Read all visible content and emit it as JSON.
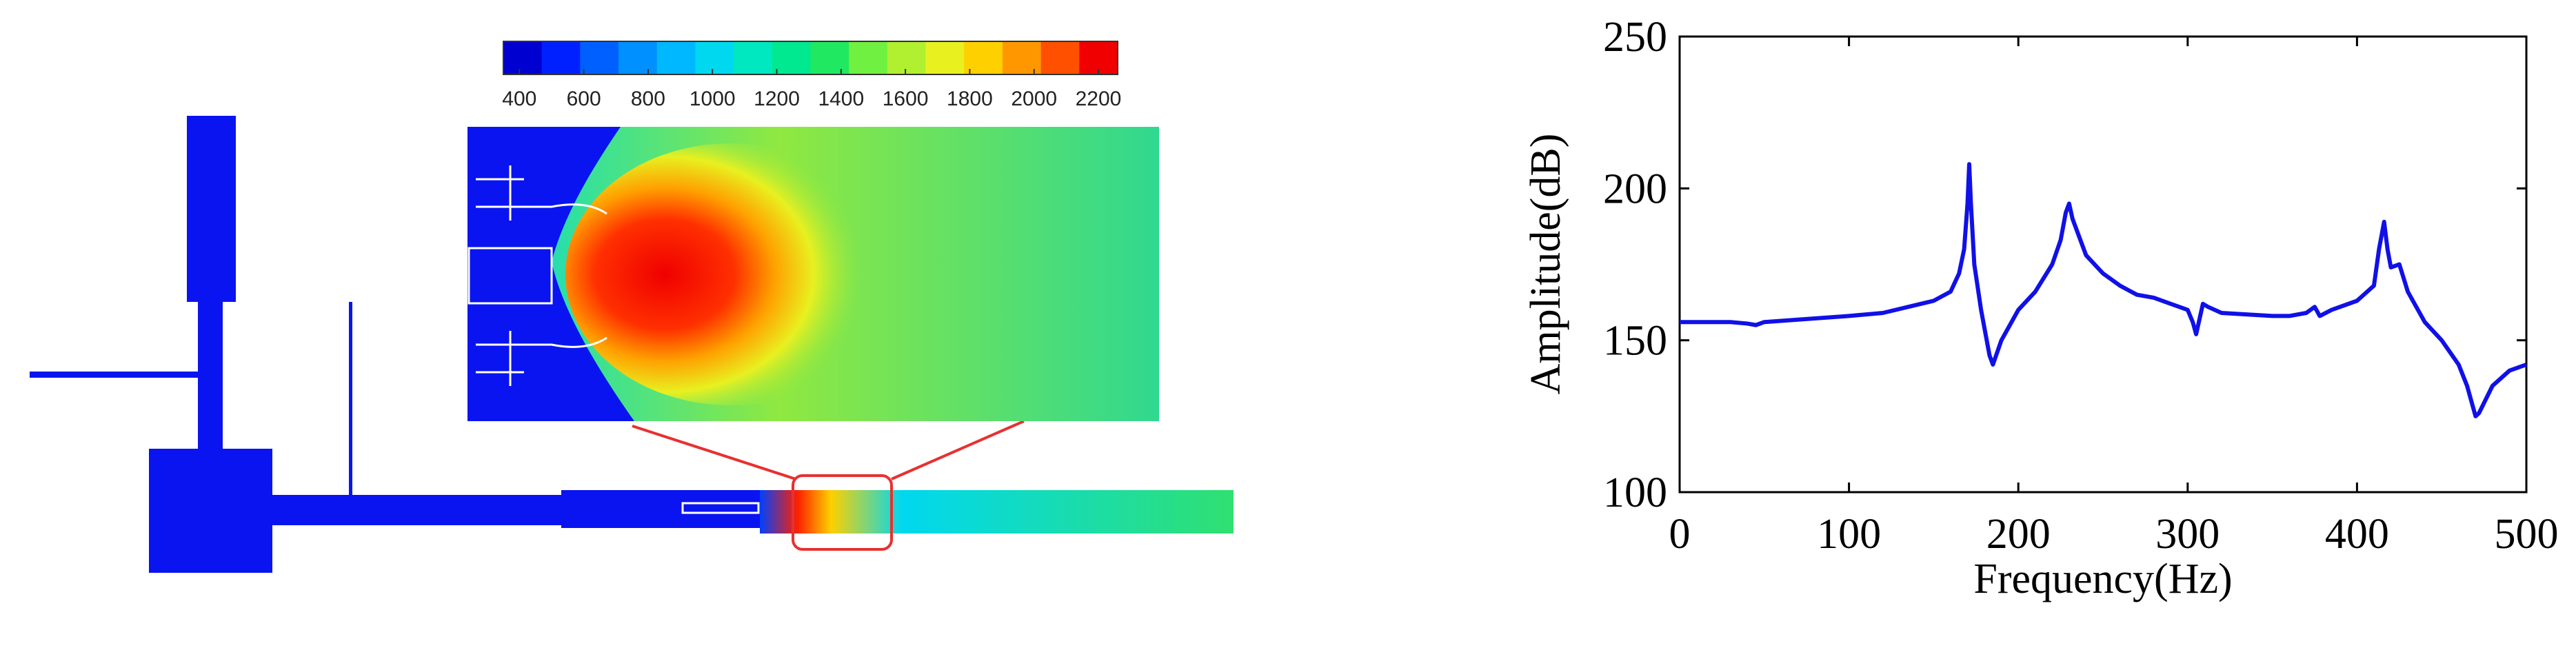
{
  "contour_figure": {
    "colorbar": {
      "range": [
        350,
        2260
      ],
      "ticks": [
        400,
        600,
        800,
        1000,
        1200,
        1400,
        1600,
        1800,
        2000,
        2200
      ],
      "colors": [
        "#0000d0",
        "#0020ff",
        "#0060ff",
        "#0090ff",
        "#00b8ff",
        "#00d8f0",
        "#00e8c0",
        "#00e890",
        "#20e860",
        "#70f040",
        "#b0f030",
        "#e8f020",
        "#ffd000",
        "#ff9800",
        "#ff5000",
        "#f00000"
      ]
    }
  },
  "chart_data": {
    "type": "line",
    "xlabel": "Frequency(Hz)",
    "ylabel": "Amplitude(dB)",
    "xlim": [
      0,
      500
    ],
    "ylim": [
      100,
      250
    ],
    "xticks": [
      0,
      100,
      200,
      300,
      400,
      500
    ],
    "yticks": [
      100,
      150,
      200,
      250
    ],
    "grid": false,
    "series": [
      {
        "name": "Amplitude",
        "color": "#1010e8",
        "x": [
          0,
          30,
          40,
          45,
          50,
          100,
          120,
          150,
          160,
          165,
          168,
          170,
          171,
          172,
          174,
          178,
          183,
          185,
          190,
          200,
          210,
          220,
          225,
          228,
          230,
          232,
          240,
          250,
          260,
          270,
          280,
          290,
          300,
          303,
          305,
          307,
          309,
          312,
          320,
          350,
          360,
          370,
          375,
          378,
          385,
          400,
          410,
          413,
          416,
          418,
          420,
          425,
          430,
          440,
          450,
          460,
          465,
          470,
          472,
          480,
          490,
          500
        ],
        "values": [
          156,
          156,
          155.5,
          155,
          156,
          158,
          159,
          163,
          166,
          172,
          180,
          195,
          208,
          195,
          175,
          160,
          145,
          142,
          150,
          160,
          166,
          175,
          183,
          192,
          195,
          190,
          178,
          172,
          168,
          165,
          164,
          162,
          160,
          156,
          152,
          157,
          162,
          161,
          159,
          158,
          158,
          159,
          161,
          158,
          160,
          163,
          168,
          180,
          189,
          180,
          174,
          175,
          166,
          156,
          150,
          142,
          135,
          125,
          126,
          135,
          140,
          142
        ]
      }
    ]
  }
}
